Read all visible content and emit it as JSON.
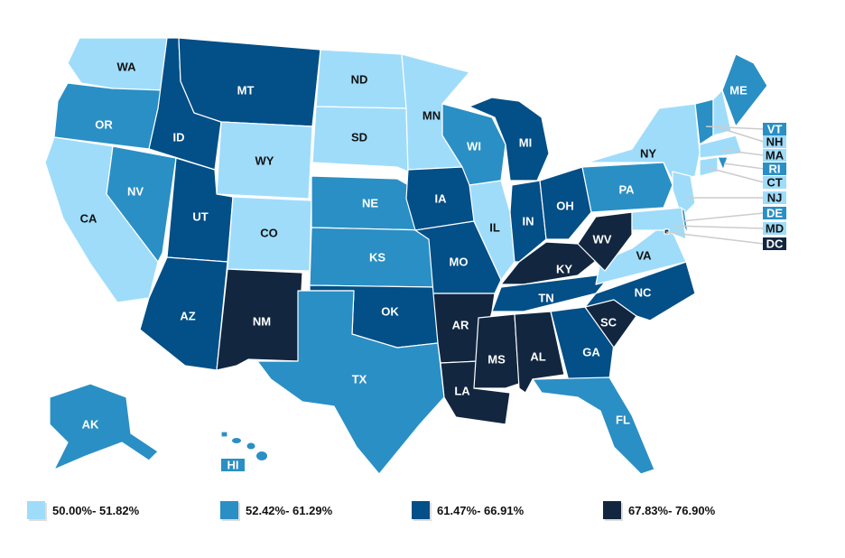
{
  "legend": [
    {
      "range": "50.00%- 51.82%",
      "color": "#9fdcfa"
    },
    {
      "range": "52.42%- 61.29%",
      "color": "#2a8fc4"
    },
    {
      "range": "61.47%- 66.91%",
      "color": "#034f87"
    },
    {
      "range": "67.83%- 76.90%",
      "color": "#12263f"
    }
  ],
  "states": [
    {
      "code": "WA",
      "cat": 0
    },
    {
      "code": "OR",
      "cat": 1
    },
    {
      "code": "CA",
      "cat": 0
    },
    {
      "code": "NV",
      "cat": 1
    },
    {
      "code": "ID",
      "cat": 2
    },
    {
      "code": "MT",
      "cat": 2
    },
    {
      "code": "WY",
      "cat": 0
    },
    {
      "code": "UT",
      "cat": 2
    },
    {
      "code": "AZ",
      "cat": 2
    },
    {
      "code": "CO",
      "cat": 0
    },
    {
      "code": "NM",
      "cat": 3
    },
    {
      "code": "ND",
      "cat": 0
    },
    {
      "code": "SD",
      "cat": 0
    },
    {
      "code": "NE",
      "cat": 1
    },
    {
      "code": "KS",
      "cat": 1
    },
    {
      "code": "OK",
      "cat": 2
    },
    {
      "code": "TX",
      "cat": 1
    },
    {
      "code": "MN",
      "cat": 0
    },
    {
      "code": "IA",
      "cat": 2
    },
    {
      "code": "MO",
      "cat": 2
    },
    {
      "code": "AR",
      "cat": 3
    },
    {
      "code": "LA",
      "cat": 3
    },
    {
      "code": "WI",
      "cat": 1
    },
    {
      "code": "IL",
      "cat": 0
    },
    {
      "code": "MI",
      "cat": 2
    },
    {
      "code": "IN",
      "cat": 2
    },
    {
      "code": "OH",
      "cat": 2
    },
    {
      "code": "KY",
      "cat": 3
    },
    {
      "code": "TN",
      "cat": 2
    },
    {
      "code": "MS",
      "cat": 3
    },
    {
      "code": "AL",
      "cat": 3
    },
    {
      "code": "GA",
      "cat": 2
    },
    {
      "code": "FL",
      "cat": 1
    },
    {
      "code": "SC",
      "cat": 3
    },
    {
      "code": "NC",
      "cat": 2
    },
    {
      "code": "VA",
      "cat": 0
    },
    {
      "code": "WV",
      "cat": 3
    },
    {
      "code": "PA",
      "cat": 1
    },
    {
      "code": "NY",
      "cat": 0
    },
    {
      "code": "ME",
      "cat": 1
    },
    {
      "code": "AK",
      "cat": 1
    },
    {
      "code": "HI",
      "cat": 1
    },
    {
      "code": "VT",
      "cat": 1
    },
    {
      "code": "NH",
      "cat": 0
    },
    {
      "code": "MA",
      "cat": 0
    },
    {
      "code": "RI",
      "cat": 1
    },
    {
      "code": "CT",
      "cat": 0
    },
    {
      "code": "NJ",
      "cat": 0
    },
    {
      "code": "DE",
      "cat": 1
    },
    {
      "code": "MD",
      "cat": 0
    },
    {
      "code": "DC",
      "cat": 3
    }
  ]
}
